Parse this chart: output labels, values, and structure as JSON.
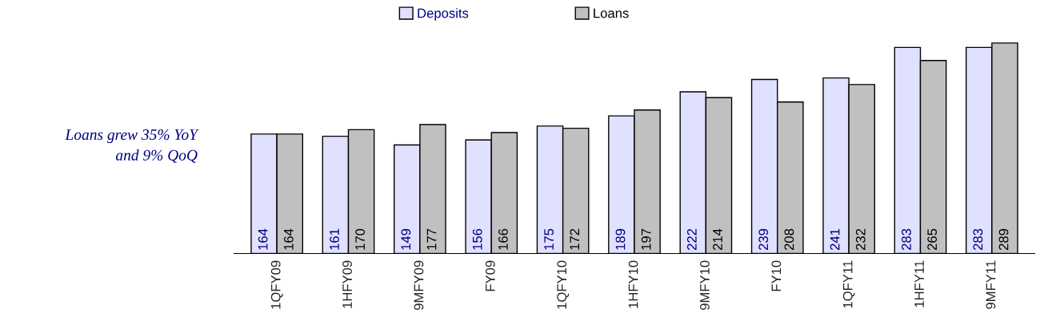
{
  "chart_data": {
    "type": "bar",
    "categories": [
      "1QFY09",
      "1HFY09",
      "9MFY09",
      "FY09",
      "1QFY10",
      "1HFY10",
      "9MFY10",
      "FY10",
      "1QFY11",
      "1HFY11",
      "9MFY11"
    ],
    "series": [
      {
        "name": "Deposits",
        "color": "#e0e0ff",
        "values": [
          164,
          161,
          149,
          156,
          175,
          189,
          222,
          239,
          241,
          283,
          283
        ]
      },
      {
        "name": "Loans",
        "color": "#c0c0c0",
        "values": [
          164,
          170,
          177,
          166,
          172,
          197,
          214,
          208,
          232,
          265,
          289
        ]
      }
    ],
    "data_labels": true,
    "legend": "top",
    "grid": false,
    "annotations": [
      "Loans grew 35% YoY\nand 9% QoQ"
    ]
  }
}
